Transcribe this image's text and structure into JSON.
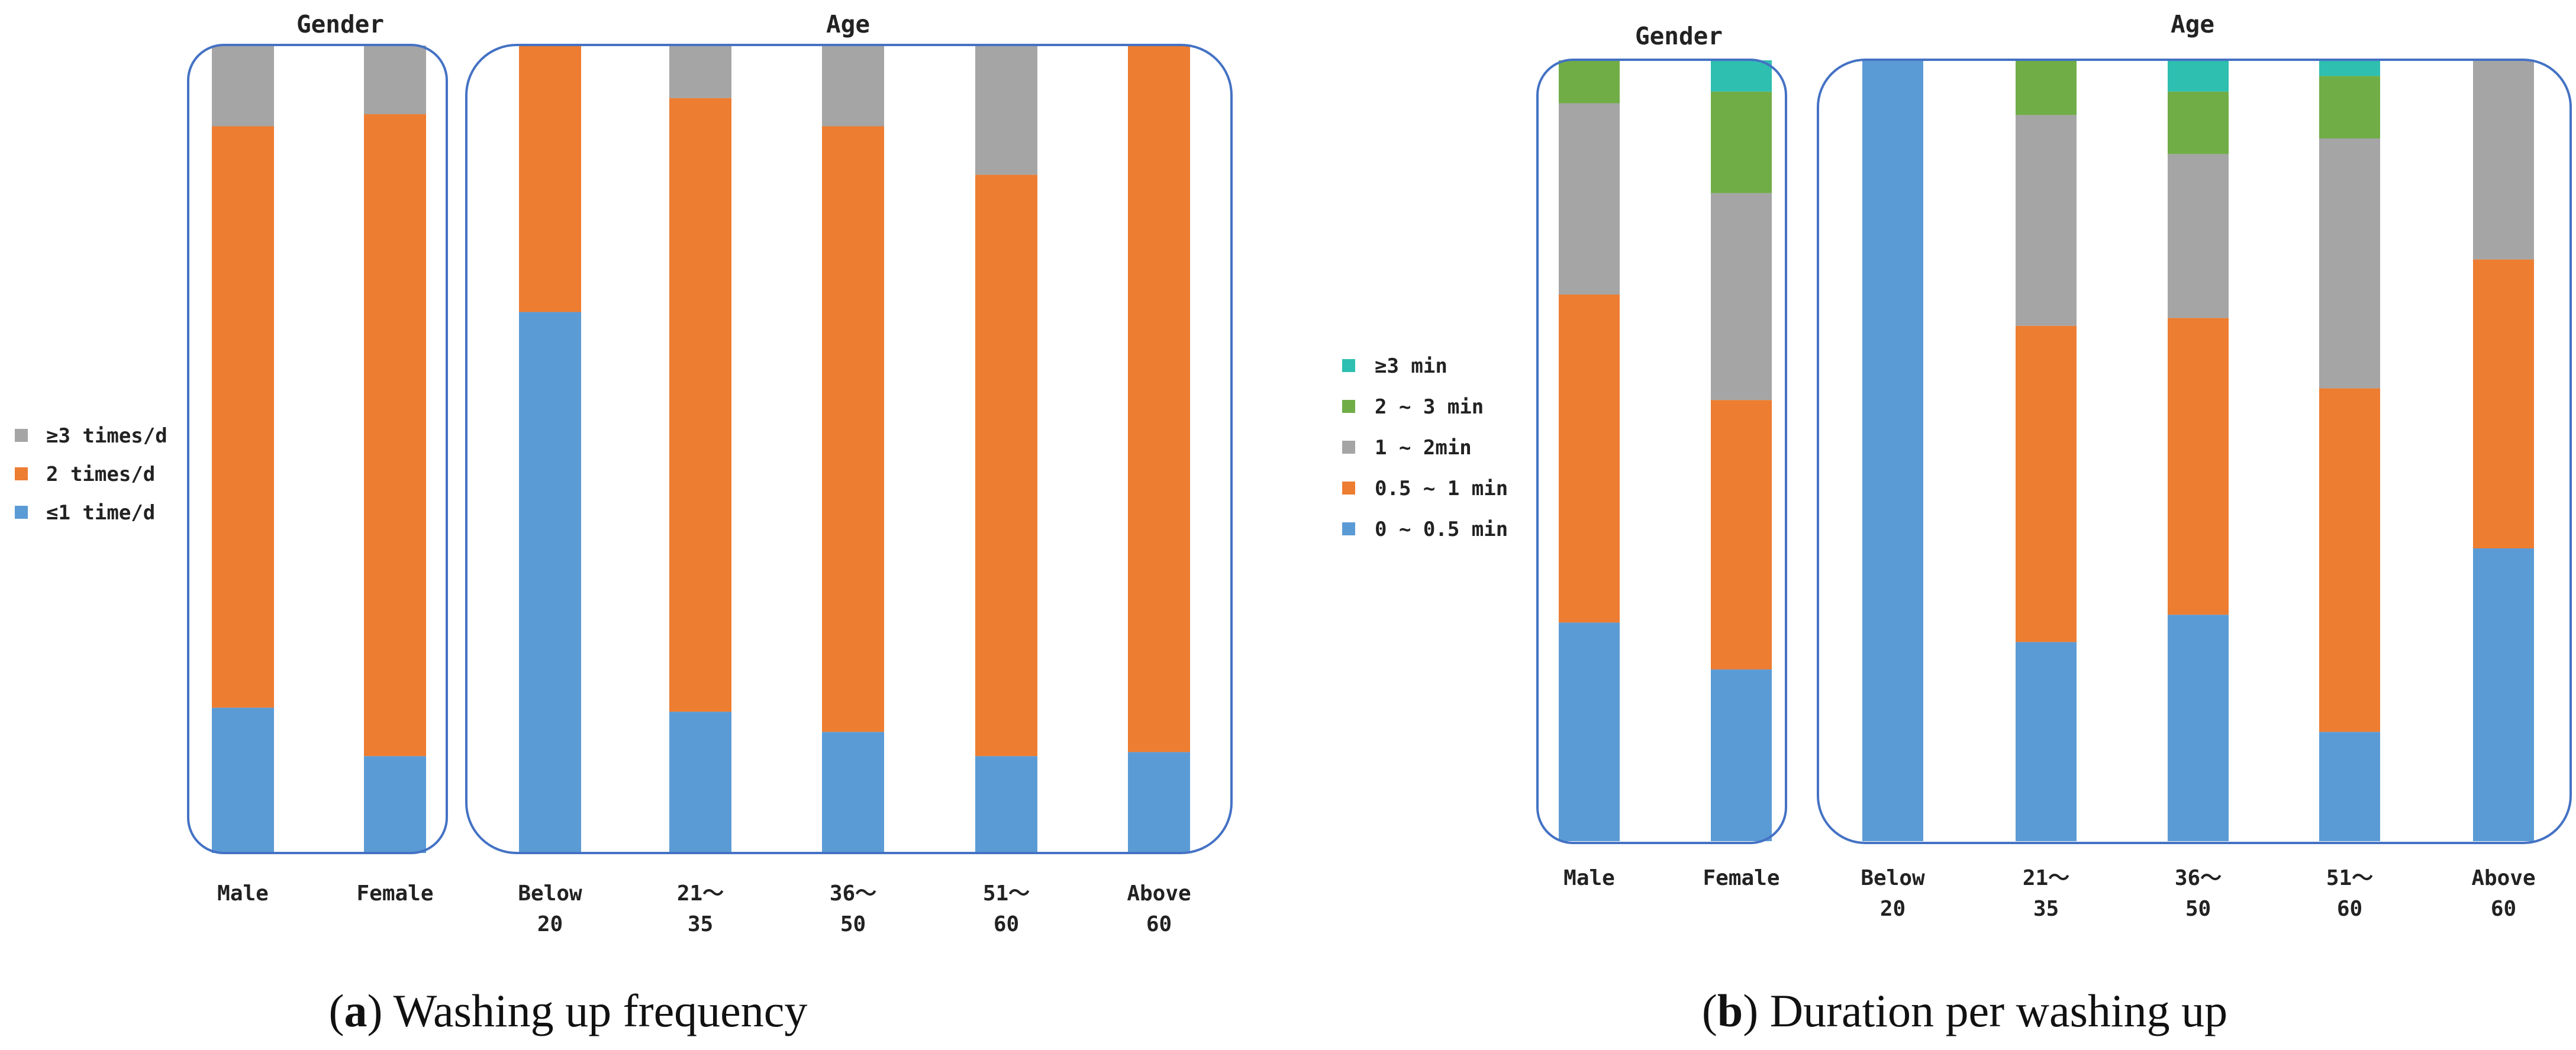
{
  "chart_data": [
    {
      "type": "bar",
      "stacked": true,
      "normalized": true,
      "title": "Washing up frequency",
      "caption": {
        "letter": "a",
        "text": "Washing up frequency"
      },
      "groups": [
        {
          "label": "Gender",
          "categories": [
            "Male",
            "Female"
          ]
        },
        {
          "label": "Age",
          "categories": [
            "Below 20",
            "21~35",
            "36~50",
            "51~60",
            "Above 60"
          ]
        }
      ],
      "categories": [
        "Male",
        "Female",
        "Below 20",
        "21~35",
        "36~50",
        "51~60",
        "Above 60"
      ],
      "tick_labels": [
        [
          "Male"
        ],
        [
          "Female"
        ],
        [
          "Below",
          "20"
        ],
        [
          "21～",
          "35"
        ],
        [
          "36～",
          "50"
        ],
        [
          "51～",
          "60"
        ],
        [
          "Above",
          "60"
        ]
      ],
      "series": [
        {
          "name": "≤1 time/d",
          "color": "#5B9BD5",
          "values": [
            18,
            12,
            67,
            17.5,
            15,
            12,
            12.5
          ]
        },
        {
          "name": "2 times/d",
          "color": "#ED7D31",
          "values": [
            72,
            79.5,
            33,
            76,
            75,
            72,
            87.5
          ]
        },
        {
          "name": "≥3 times/d",
          "color": "#A5A5A5",
          "values": [
            10,
            8.5,
            0,
            6.5,
            10,
            16,
            0
          ]
        }
      ],
      "legend": [
        {
          "prefix": "≥",
          "text": "3 times/d",
          "color": "#A5A5A5"
        },
        {
          "prefix": "",
          "text": "  2 times/d",
          "color": "#ED7D31"
        },
        {
          "prefix": "≤",
          "text": "1 time/d",
          "color": "#5B9BD5"
        }
      ],
      "legend_position": "left",
      "ylim": [
        0,
        100
      ]
    },
    {
      "type": "bar",
      "stacked": true,
      "normalized": true,
      "title": "Duration per washing up",
      "caption": {
        "letter": "b",
        "text": "Duration per washing up"
      },
      "groups": [
        {
          "label": "Gender",
          "categories": [
            "Male",
            "Female"
          ]
        },
        {
          "label": "Age",
          "categories": [
            "Below 20",
            "21~35",
            "36~50",
            "51~60",
            "Above 60"
          ]
        }
      ],
      "categories": [
        "Male",
        "Female",
        "Below 20",
        "21~35",
        "36~50",
        "51~60",
        "Above 60"
      ],
      "tick_labels": [
        [
          "Male"
        ],
        [
          "Female"
        ],
        [
          "Below",
          "20"
        ],
        [
          "21～",
          "35"
        ],
        [
          "36～",
          "50"
        ],
        [
          "51～",
          "60"
        ],
        [
          "Above",
          "60"
        ]
      ],
      "series": [
        {
          "name": "0 ~ 0.5 min",
          "color": "#5B9BD5",
          "values": [
            28,
            22,
            100,
            25.5,
            29,
            14,
            37.5
          ]
        },
        {
          "name": "0.5 ~ 1 min",
          "color": "#ED7D31",
          "values": [
            42,
            34.5,
            0,
            40.5,
            38,
            44,
            37
          ]
        },
        {
          "name": "1 ~ 2min",
          "color": "#A5A5A5",
          "values": [
            24.5,
            26.5,
            0,
            27,
            21,
            32,
            25.5
          ]
        },
        {
          "name": "2 ~ 3 min",
          "color": "#70AD47",
          "values": [
            5.5,
            13,
            0,
            7,
            8,
            8,
            0
          ]
        },
        {
          "name": "≥3 min",
          "color": "#2EBFB1",
          "values": [
            0,
            4,
            0,
            0,
            4,
            2,
            0
          ]
        }
      ],
      "legend": [
        {
          "prefix": "≥",
          "text": "3 min",
          "color": "#2EBFB1"
        },
        {
          "prefix": "",
          "text": "2 ~ 3 min",
          "color": "#70AD47"
        },
        {
          "prefix": "",
          "text": "1 ~ 2min",
          "color": "#A5A5A5"
        },
        {
          "prefix": "",
          "text": "  0.5 ~ 1 min",
          "color": "#ED7D31"
        },
        {
          "prefix": "",
          "text": "0 ~ 0.5 min",
          "color": "#5B9BD5"
        }
      ],
      "legend_position": "left",
      "ylim": [
        0,
        100
      ]
    }
  ]
}
